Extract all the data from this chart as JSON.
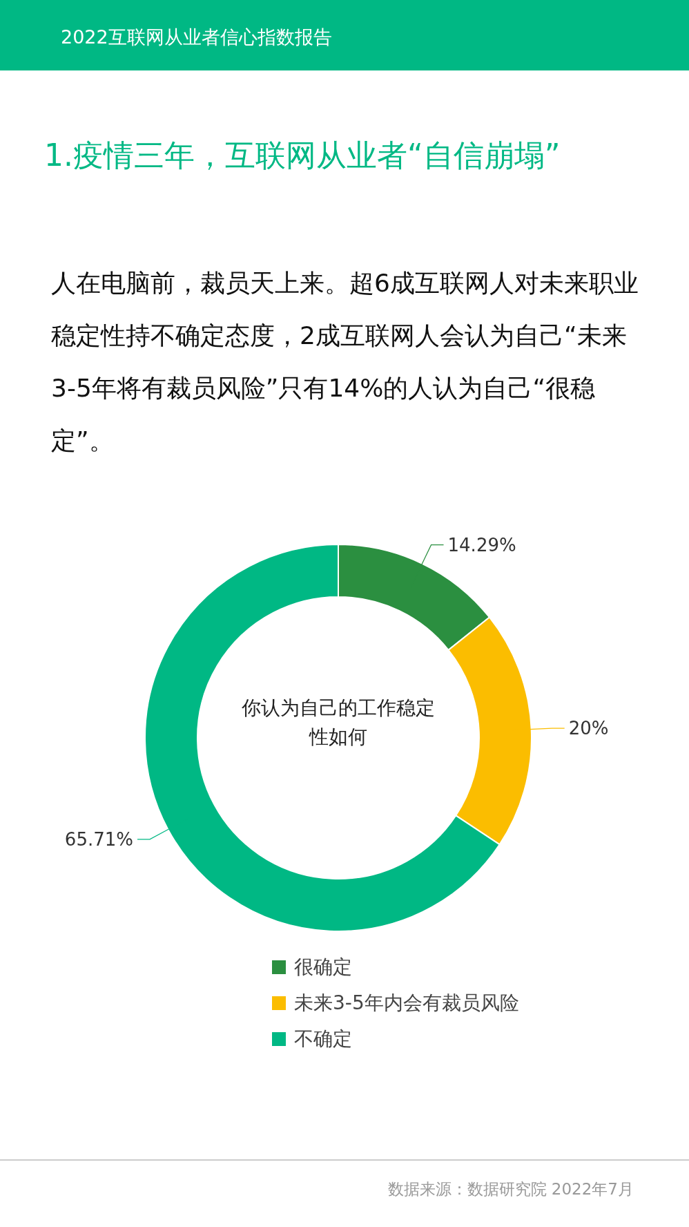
{
  "chart_data": {
    "type": "donut",
    "title": "1.疫情三年，互联网从业者“自信崩塌”",
    "subtitle": "人在电脑前，裁员天上来。超6成互联网人对未来职业稳定性持不确定态度，2成互联网人会认为自己“未来3-5年将有裁员风险”只有14%的人认为自己“很稳定”。",
    "categories": [
      "很确定",
      "未来3-5年内会有裁员风险",
      "不确定"
    ],
    "values": [
      14.29,
      20,
      65.71
    ],
    "colors": [
      "#2b8f40",
      "#fbbd00",
      "#00b884"
    ],
    "value_labels": [
      "14.29%",
      "20%",
      "65.71%"
    ],
    "legend": "bottom",
    "annotations": [
      "2022互联网从业者信心指数报告",
      "你认为自己的工作稳定性如何",
      "数据来源：数据研究院 2022年7月"
    ]
  }
}
